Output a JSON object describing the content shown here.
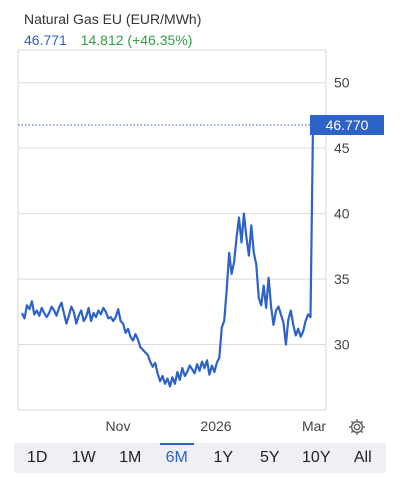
{
  "header": {
    "title": "Natural Gas EU (EUR/MWh)",
    "last_value": "46.771",
    "change": "14.812 (+46.35%)"
  },
  "colors": {
    "line": "#2d62c9",
    "up": "#2f9e44",
    "grid": "#d9d9d9",
    "price_tag": "#2d62c9"
  },
  "price_tag": "46.770",
  "settings_icon": "gear-icon",
  "ranges": [
    {
      "label": "1D",
      "active": false
    },
    {
      "label": "1W",
      "active": false
    },
    {
      "label": "1M",
      "active": false
    },
    {
      "label": "6M",
      "active": true
    },
    {
      "label": "1Y",
      "active": false
    },
    {
      "label": "5Y",
      "active": false
    },
    {
      "label": "10Y",
      "active": false
    },
    {
      "label": "All",
      "active": false
    }
  ],
  "chart_data": {
    "type": "line",
    "title": "Natural Gas EU (EUR/MWh)",
    "x_tick_labels": [
      "Nov",
      "2026",
      "Mar"
    ],
    "y_ticks": [
      30,
      35,
      40,
      45,
      50
    ],
    "ylim": [
      25.0,
      52.5
    ],
    "current_value": 46.77,
    "grid": "horizontal",
    "series": [
      {
        "values": [
          32.4,
          32.0,
          33.0,
          32.7,
          33.3,
          32.3,
          32.6,
          32.2,
          32.8,
          32.4,
          32.1,
          32.4,
          32.9,
          32.6,
          32.2,
          32.8,
          33.2,
          32.4,
          31.6,
          32.2,
          32.9,
          32.5,
          31.6,
          32.2,
          32.6,
          31.8,
          32.1,
          32.8,
          31.8,
          32.4,
          32.1,
          32.6,
          32.3,
          32.8,
          32.5,
          32.0,
          32.1,
          31.8,
          32.1,
          32.7,
          31.8,
          31.6,
          30.9,
          31.2,
          30.6,
          30.3,
          30.8,
          30.4,
          29.8,
          29.6,
          29.4,
          29.2,
          28.7,
          28.3,
          28.6,
          27.8,
          27.2,
          27.6,
          27.0,
          27.4,
          26.8,
          27.5,
          27.0,
          27.9,
          27.3,
          28.2,
          27.6,
          27.9,
          28.4,
          28.1,
          27.8,
          28.5,
          28.0,
          28.7,
          28.2,
          28.8,
          27.7,
          28.4,
          27.9,
          28.6,
          29.0,
          31.3,
          31.8,
          34.2,
          37.0,
          35.4,
          36.3,
          38.2,
          39.7,
          37.8,
          40.0,
          38.2,
          36.8,
          39.1,
          37.0,
          36.1,
          33.6,
          33.0,
          34.5,
          32.8,
          35.1,
          32.9,
          31.5,
          32.6,
          32.9,
          32.3,
          31.7,
          30.0,
          31.9,
          32.6,
          31.5,
          30.7,
          31.2,
          30.6,
          31.0,
          31.8,
          32.3,
          32.1,
          46.77
        ]
      }
    ]
  }
}
